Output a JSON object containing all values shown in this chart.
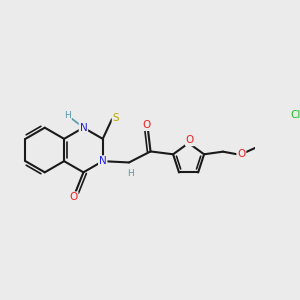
{
  "background_color": "#ebebeb",
  "bond_color": "#1a1a1a",
  "atom_colors": {
    "N": "#2020dd",
    "O": "#ee2020",
    "S": "#bbaa00",
    "Cl": "#22bb22",
    "H": "#5599aa",
    "C": "#1a1a1a"
  },
  "figsize": [
    3.0,
    3.0
  ],
  "dpi": 100
}
